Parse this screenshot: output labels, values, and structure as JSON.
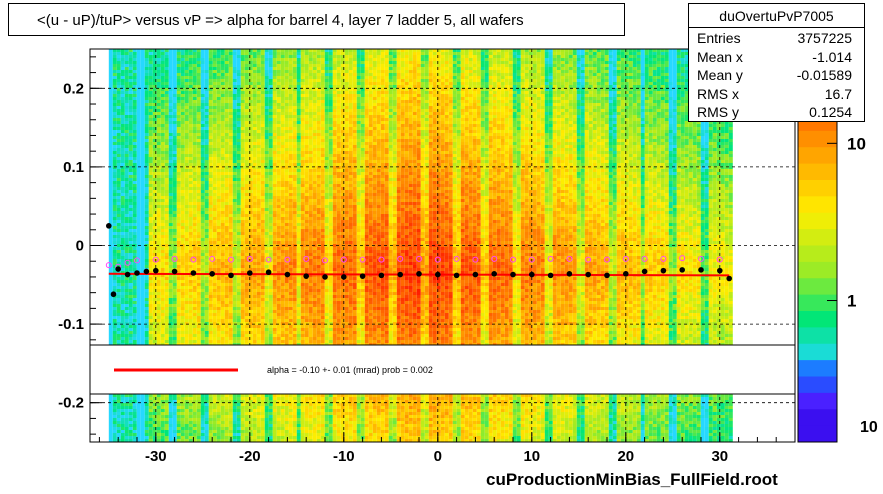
{
  "title": "<(u - uP)/tuP> versus   vP => alpha for barrel 4, layer 7 ladder 5, all wafers",
  "stats": {
    "name": "duOvertuPvP7005",
    "rows": [
      {
        "key": "Entries",
        "value": "3757225"
      },
      {
        "key": "Mean x",
        "value": "-1.014"
      },
      {
        "key": "Mean y",
        "value": "-0.01589"
      },
      {
        "key": "RMS x",
        "value": "16.7"
      },
      {
        "key": "RMS y",
        "value": "0.1254"
      }
    ]
  },
  "fit_label": "alpha =   -0.10 +-  0.01 (mrad) prob = 0.002",
  "footer": "cuProductionMinBias_FullField.root",
  "colors": {
    "profile_black": "#000000",
    "profile_magenta": "#ff44ff",
    "fit_line": "#ff0000",
    "grid": "#000000",
    "heat_low": "#26d8ff",
    "heat_mid": "#ffee00",
    "heat_high": "#ff1a00"
  },
  "chart_data": {
    "type": "heatmap",
    "title": "<(u - uP)/tuP> versus   vP => alpha for barrel 4, layer 7 ladder 5, all wafers",
    "xlim": [
      -37,
      38
    ],
    "ylim": [
      -0.25,
      0.25
    ],
    "x_ticks": [
      -30,
      -20,
      -10,
      0,
      10,
      20,
      30
    ],
    "x_tick_labels": [
      "-30",
      "-20",
      "-10",
      "0",
      "10",
      "20",
      "30"
    ],
    "y_ticks": [
      -0.2,
      -0.1,
      0,
      0.1,
      0.2
    ],
    "y_tick_labels": [
      "-0.2",
      "-0.1",
      "0",
      "0.1",
      "0.2"
    ],
    "colorbar": {
      "scale": "log",
      "ticks": [
        1,
        10
      ],
      "tick_labels": [
        "1",
        "10"
      ],
      "partial_label": "10"
    },
    "grid": true,
    "heatmap_x_range": [
      -35,
      31
    ],
    "profile_black": {
      "x": [
        -35,
        -34.5,
        -34,
        -33,
        -32,
        -31,
        -30,
        -28,
        -26,
        -24,
        -22,
        -20,
        -18,
        -16,
        -14,
        -12,
        -10,
        -8,
        -6,
        -4,
        -2,
        0,
        2,
        4,
        6,
        8,
        10,
        12,
        14,
        16,
        18,
        20,
        22,
        24,
        26,
        28,
        30,
        31
      ],
      "y": [
        0.025,
        -0.062,
        -0.03,
        -0.037,
        -0.035,
        -0.033,
        -0.032,
        -0.033,
        -0.035,
        -0.036,
        -0.038,
        -0.035,
        -0.034,
        -0.037,
        -0.039,
        -0.04,
        -0.04,
        -0.039,
        -0.038,
        -0.037,
        -0.036,
        -0.037,
        -0.038,
        -0.037,
        -0.036,
        -0.037,
        -0.037,
        -0.038,
        -0.036,
        -0.037,
        -0.038,
        -0.036,
        -0.033,
        -0.032,
        -0.031,
        -0.031,
        -0.032,
        -0.042
      ]
    },
    "profile_magenta": {
      "x": [
        -35,
        -34,
        -33,
        -32,
        -30,
        -28,
        -26,
        -24,
        -22,
        -20,
        -18,
        -16,
        -14,
        -12,
        -10,
        -8,
        -6,
        -4,
        -2,
        0,
        2,
        4,
        6,
        8,
        10,
        12,
        14,
        16,
        18,
        20,
        22,
        24,
        26,
        28,
        30
      ],
      "y": [
        -0.025,
        -0.027,
        -0.022,
        -0.019,
        -0.018,
        -0.017,
        -0.018,
        -0.017,
        -0.018,
        -0.017,
        -0.018,
        -0.018,
        -0.017,
        -0.019,
        -0.018,
        -0.018,
        -0.018,
        -0.017,
        -0.017,
        -0.018,
        -0.017,
        -0.018,
        -0.017,
        -0.018,
        -0.018,
        -0.017,
        -0.017,
        -0.018,
        -0.018,
        -0.017,
        -0.017,
        -0.017,
        -0.016,
        -0.017,
        -0.018
      ]
    },
    "fit": {
      "x": [
        -35,
        31
      ],
      "y": [
        -0.036,
        -0.038
      ],
      "slope_mrad": -0.1,
      "error_mrad": 0.01,
      "prob": 0.002
    }
  }
}
